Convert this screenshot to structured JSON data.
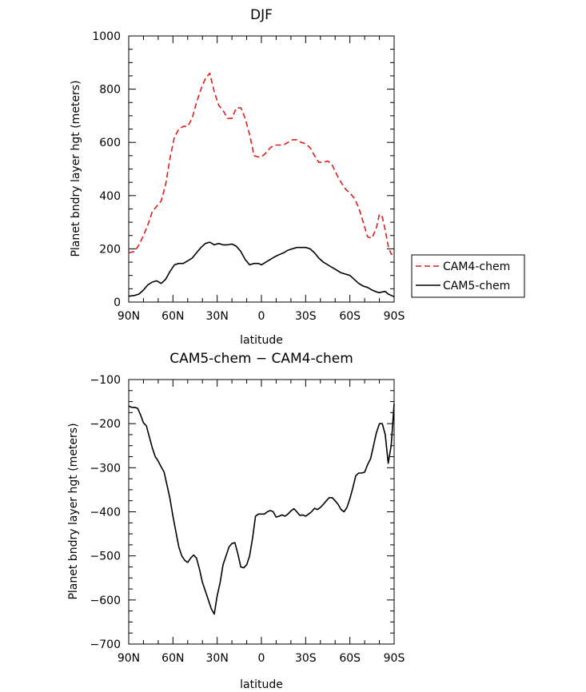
{
  "chart_data": [
    {
      "type": "line",
      "title": "DJF",
      "xlabel": "latitude",
      "ylabel": "Planet bndry layer hgt (meters)",
      "xlim": [
        90,
        -90
      ],
      "ylim": [
        0,
        1000
      ],
      "xticks": [
        90,
        60,
        30,
        0,
        -30,
        -60,
        -90
      ],
      "xtick_labels": [
        "90N",
        "60N",
        "30N",
        "0",
        "30S",
        "60S",
        "90S"
      ],
      "yticks": [
        0,
        200,
        400,
        600,
        800,
        1000
      ],
      "ytick_labels": [
        "0",
        "200",
        "400",
        "600",
        "800",
        "1000"
      ],
      "legend_position": "right",
      "series": [
        {
          "name": "CAM4-chem",
          "color": "#e31a1c",
          "dash": "dashed",
          "x": [
            90,
            86,
            83,
            80,
            77,
            74,
            71,
            68,
            65,
            62,
            59,
            56,
            53,
            50,
            47,
            44,
            41,
            38,
            35,
            32,
            29,
            26,
            23,
            20,
            17,
            14,
            11,
            8,
            5,
            2,
            0,
            -3,
            -6,
            -9,
            -12,
            -15,
            -18,
            -21,
            -24,
            -27,
            -30,
            -33,
            -36,
            -39,
            -42,
            -45,
            -48,
            -51,
            -54,
            -57,
            -60,
            -63,
            -66,
            -69,
            -72,
            -75,
            -78,
            -80,
            -82,
            -84,
            -86,
            -88,
            -90
          ],
          "y": [
            185,
            190,
            215,
            250,
            290,
            340,
            360,
            380,
            440,
            540,
            620,
            650,
            660,
            660,
            690,
            750,
            800,
            840,
            860,
            790,
            740,
            720,
            690,
            690,
            730,
            730,
            690,
            630,
            550,
            545,
            545,
            560,
            580,
            590,
            590,
            590,
            600,
            610,
            610,
            600,
            595,
            580,
            550,
            525,
            525,
            530,
            515,
            480,
            450,
            425,
            410,
            390,
            355,
            300,
            245,
            240,
            280,
            330,
            320,
            270,
            210,
            180,
            180
          ]
        },
        {
          "name": "CAM5-chem",
          "color": "#000000",
          "dash": "solid",
          "x": [
            90,
            86,
            83,
            80,
            77,
            74,
            71,
            68,
            65,
            62,
            59,
            56,
            53,
            50,
            47,
            44,
            41,
            38,
            35,
            32,
            29,
            26,
            23,
            20,
            17,
            14,
            11,
            8,
            5,
            2,
            0,
            -3,
            -6,
            -9,
            -12,
            -15,
            -18,
            -21,
            -24,
            -27,
            -30,
            -33,
            -36,
            -39,
            -42,
            -45,
            -48,
            -51,
            -54,
            -57,
            -60,
            -63,
            -66,
            -69,
            -72,
            -75,
            -78,
            -80,
            -82,
            -84,
            -86,
            -88,
            -90
          ],
          "y": [
            22,
            25,
            30,
            45,
            65,
            75,
            80,
            70,
            85,
            115,
            140,
            145,
            145,
            155,
            165,
            185,
            205,
            220,
            225,
            215,
            220,
            215,
            215,
            218,
            210,
            190,
            160,
            140,
            145,
            145,
            140,
            150,
            160,
            170,
            178,
            185,
            195,
            200,
            205,
            205,
            205,
            200,
            185,
            165,
            150,
            140,
            130,
            120,
            110,
            105,
            100,
            85,
            70,
            60,
            55,
            45,
            38,
            35,
            38,
            40,
            30,
            25,
            20
          ]
        }
      ]
    },
    {
      "type": "line",
      "title": "CAM5-chem  −  CAM4-chem",
      "xlabel": "latitude",
      "ylabel": "Planet bndry layer hgt (meters)",
      "xlim": [
        90,
        -90
      ],
      "ylim": [
        -700,
        -100
      ],
      "xticks": [
        90,
        60,
        30,
        0,
        -30,
        -60,
        -90
      ],
      "xtick_labels": [
        "90N",
        "60N",
        "30N",
        "0",
        "30S",
        "60S",
        "90S"
      ],
      "yticks": [
        -700,
        -600,
        -500,
        -400,
        -300,
        -200,
        -100
      ],
      "ytick_labels": [
        "−700",
        "−600",
        "−500",
        "−400",
        "−300",
        "−200",
        "−100"
      ],
      "series": [
        {
          "name": "CAM5-chem − CAM4-chem",
          "color": "#000000",
          "dash": "solid",
          "x": [
            90,
            88,
            86,
            84,
            82,
            80,
            78,
            76,
            74,
            72,
            70,
            68,
            66,
            64,
            62,
            60,
            58,
            56,
            54,
            52,
            50,
            48,
            46,
            44,
            42,
            40,
            38,
            36,
            34,
            32,
            30,
            28,
            26,
            24,
            22,
            20,
            18,
            16,
            14,
            12,
            10,
            8,
            6,
            4,
            2,
            0,
            -2,
            -4,
            -6,
            -8,
            -10,
            -12,
            -14,
            -16,
            -18,
            -20,
            -22,
            -24,
            -26,
            -28,
            -30,
            -32,
            -34,
            -36,
            -38,
            -40,
            -42,
            -44,
            -46,
            -48,
            -50,
            -52,
            -54,
            -56,
            -58,
            -60,
            -62,
            -64,
            -66,
            -68,
            -70,
            -72,
            -74,
            -76,
            -78,
            -80,
            -82,
            -84,
            -86,
            -88,
            -90
          ],
          "y": [
            -160,
            -163,
            -163,
            -165,
            -180,
            -198,
            -205,
            -230,
            -255,
            -275,
            -285,
            -298,
            -310,
            -340,
            -370,
            -410,
            -445,
            -480,
            -500,
            -510,
            -515,
            -505,
            -498,
            -505,
            -530,
            -560,
            -580,
            -600,
            -620,
            -632,
            -590,
            -560,
            -520,
            -500,
            -480,
            -472,
            -470,
            -495,
            -525,
            -527,
            -520,
            -500,
            -460,
            -410,
            -405,
            -405,
            -405,
            -400,
            -397,
            -400,
            -412,
            -410,
            -407,
            -410,
            -405,
            -398,
            -393,
            -400,
            -408,
            -407,
            -410,
            -405,
            -400,
            -392,
            -395,
            -390,
            -383,
            -375,
            -368,
            -368,
            -375,
            -383,
            -395,
            -400,
            -390,
            -370,
            -345,
            -318,
            -312,
            -312,
            -310,
            -293,
            -280,
            -250,
            -220,
            -200,
            -200,
            -225,
            -290,
            -250,
            -155
          ]
        }
      ]
    }
  ]
}
